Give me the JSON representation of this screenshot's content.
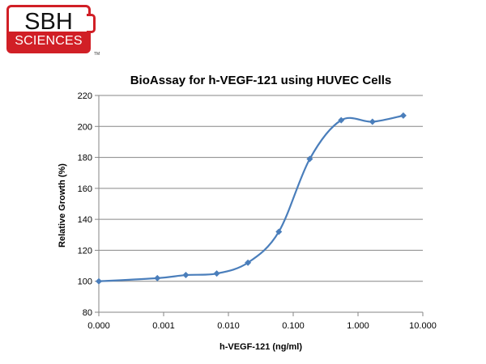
{
  "logo": {
    "top_text": "SBH",
    "band_text": "SCIENCES",
    "tm": "TM",
    "colors": {
      "brand_red": "#d11f26",
      "text": "#111111"
    }
  },
  "chart_data": {
    "type": "line",
    "title": "BioAssay for h-VEGF-121 using HUVEC Cells",
    "xlabel": "h-VEGF-121 (ng/ml)",
    "ylabel": "Relative Growth (%)",
    "x_tick_labels": [
      "0.000",
      "0.001",
      "0.010",
      "0.100",
      "1.000",
      "10.000"
    ],
    "y_ticks": [
      80,
      100,
      120,
      140,
      160,
      180,
      200,
      220
    ],
    "ylim": [
      80,
      220
    ],
    "grid": "horizontal",
    "legend": "none",
    "series": [
      {
        "color": "#4a7ebb",
        "x": [
          0.0001,
          0.0008,
          0.0022,
          0.0066,
          0.02,
          0.06,
          0.18,
          0.55,
          1.67,
          5.0
        ],
        "y": [
          100,
          102,
          104,
          105,
          112,
          132,
          179,
          204,
          203,
          207
        ]
      }
    ]
  }
}
